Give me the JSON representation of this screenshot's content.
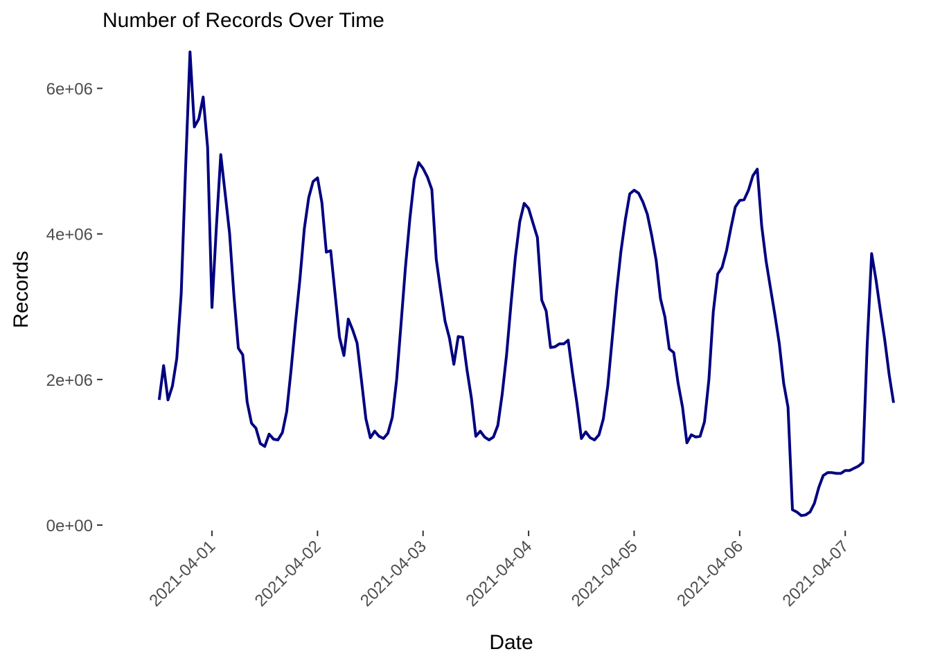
{
  "chart_data": {
    "type": "line",
    "title": "Number of Records Over Time",
    "xlabel": "Date",
    "ylabel": "Records",
    "grid": false,
    "legend": "none",
    "line_color": "#000080",
    "xlim": [
      "2021-03-31 01:00",
      "2021-04-07 11:00"
    ],
    "ylim": [
      0,
      6500000
    ],
    "x_ticks": [
      "2021-04-01",
      "2021-04-02",
      "2021-04-03",
      "2021-04-04",
      "2021-04-05",
      "2021-04-06",
      "2021-04-07"
    ],
    "y_ticks": [
      {
        "value": 0,
        "label": "0e+00"
      },
      {
        "value": 2000000,
        "label": "2e+06"
      },
      {
        "value": 4000000,
        "label": "4e+06"
      },
      {
        "value": 6000000,
        "label": "6e+06"
      }
    ],
    "series": [
      {
        "x": [
          "2021-03-31 12:00",
          "2021-03-31 13:00",
          "2021-03-31 14:00",
          "2021-03-31 15:00",
          "2021-03-31 16:00",
          "2021-03-31 17:00",
          "2021-03-31 18:00",
          "2021-03-31 19:00",
          "2021-03-31 20:00",
          "2021-03-31 21:00",
          "2021-03-31 22:00",
          "2021-03-31 23:00",
          "2021-04-01 00:00",
          "2021-04-01 01:00",
          "2021-04-01 02:00",
          "2021-04-01 03:00",
          "2021-04-01 04:00",
          "2021-04-01 05:00",
          "2021-04-01 06:00",
          "2021-04-01 07:00",
          "2021-04-01 08:00",
          "2021-04-01 09:00",
          "2021-04-01 10:00",
          "2021-04-01 11:00",
          "2021-04-01 12:00",
          "2021-04-01 13:00",
          "2021-04-01 14:00",
          "2021-04-01 15:00",
          "2021-04-01 16:00",
          "2021-04-01 17:00",
          "2021-04-01 18:00",
          "2021-04-01 19:00",
          "2021-04-01 20:00",
          "2021-04-01 21:00",
          "2021-04-01 22:00",
          "2021-04-01 23:00",
          "2021-04-02 00:00",
          "2021-04-02 01:00",
          "2021-04-02 02:00",
          "2021-04-02 03:00",
          "2021-04-02 04:00",
          "2021-04-02 05:00",
          "2021-04-02 06:00",
          "2021-04-02 07:00",
          "2021-04-02 08:00",
          "2021-04-02 09:00",
          "2021-04-02 10:00",
          "2021-04-02 11:00",
          "2021-04-02 12:00",
          "2021-04-02 13:00",
          "2021-04-02 14:00",
          "2021-04-02 15:00",
          "2021-04-02 16:00",
          "2021-04-02 17:00",
          "2021-04-02 18:00",
          "2021-04-02 19:00",
          "2021-04-02 20:00",
          "2021-04-02 21:00",
          "2021-04-02 22:00",
          "2021-04-02 23:00",
          "2021-04-03 00:00",
          "2021-04-03 01:00",
          "2021-04-03 02:00",
          "2021-04-03 03:00",
          "2021-04-03 04:00",
          "2021-04-03 05:00",
          "2021-04-03 06:00",
          "2021-04-03 07:00",
          "2021-04-03 08:00",
          "2021-04-03 09:00",
          "2021-04-03 10:00",
          "2021-04-03 11:00",
          "2021-04-03 12:00",
          "2021-04-03 13:00",
          "2021-04-03 14:00",
          "2021-04-03 15:00",
          "2021-04-03 16:00",
          "2021-04-03 17:00",
          "2021-04-03 18:00",
          "2021-04-03 19:00",
          "2021-04-03 20:00",
          "2021-04-03 21:00",
          "2021-04-03 22:00",
          "2021-04-03 23:00",
          "2021-04-04 00:00",
          "2021-04-04 01:00",
          "2021-04-04 02:00",
          "2021-04-04 03:00",
          "2021-04-04 04:00",
          "2021-04-04 05:00",
          "2021-04-04 06:00",
          "2021-04-04 07:00",
          "2021-04-04 08:00",
          "2021-04-04 09:00",
          "2021-04-04 10:00",
          "2021-04-04 11:00",
          "2021-04-04 12:00",
          "2021-04-04 13:00",
          "2021-04-04 14:00",
          "2021-04-04 15:00",
          "2021-04-04 16:00",
          "2021-04-04 17:00",
          "2021-04-04 18:00",
          "2021-04-04 19:00",
          "2021-04-04 20:00",
          "2021-04-04 21:00",
          "2021-04-04 22:00",
          "2021-04-04 23:00",
          "2021-04-05 00:00",
          "2021-04-05 01:00",
          "2021-04-05 02:00",
          "2021-04-05 03:00",
          "2021-04-05 04:00",
          "2021-04-05 05:00",
          "2021-04-05 06:00",
          "2021-04-05 07:00",
          "2021-04-05 08:00",
          "2021-04-05 09:00",
          "2021-04-05 10:00",
          "2021-04-05 11:00",
          "2021-04-05 12:00",
          "2021-04-05 13:00",
          "2021-04-05 14:00",
          "2021-04-05 15:00",
          "2021-04-05 16:00",
          "2021-04-05 17:00",
          "2021-04-05 18:00",
          "2021-04-05 19:00",
          "2021-04-05 20:00",
          "2021-04-05 21:00",
          "2021-04-05 22:00",
          "2021-04-05 23:00",
          "2021-04-06 00:00",
          "2021-04-06 01:00",
          "2021-04-06 02:00",
          "2021-04-06 03:00",
          "2021-04-06 04:00",
          "2021-04-06 05:00",
          "2021-04-06 06:00",
          "2021-04-06 07:00",
          "2021-04-06 08:00",
          "2021-04-06 09:00",
          "2021-04-06 10:00",
          "2021-04-06 11:00",
          "2021-04-06 12:00",
          "2021-04-06 13:00",
          "2021-04-06 14:00",
          "2021-04-06 15:00",
          "2021-04-06 16:00",
          "2021-04-06 17:00",
          "2021-04-06 18:00",
          "2021-04-06 19:00",
          "2021-04-06 20:00",
          "2021-04-06 21:00",
          "2021-04-06 22:00",
          "2021-04-06 23:00",
          "2021-04-07 00:00",
          "2021-04-07 01:00",
          "2021-04-07 02:00",
          "2021-04-07 03:00",
          "2021-04-07 04:00",
          "2021-04-07 05:00",
          "2021-04-07 06:00",
          "2021-04-07 07:00",
          "2021-04-07 08:00",
          "2021-04-07 09:00",
          "2021-04-07 10:00",
          "2021-04-07 11:00"
        ],
        "values": [
          1720000,
          2190000,
          1720000,
          1910000,
          2290000,
          3180000,
          4900000,
          6500000,
          5470000,
          5580000,
          5880000,
          5190000,
          2990000,
          4100000,
          5090000,
          4550000,
          4010000,
          3140000,
          2430000,
          2340000,
          1690000,
          1400000,
          1330000,
          1120000,
          1080000,
          1250000,
          1180000,
          1170000,
          1270000,
          1560000,
          2140000,
          2780000,
          3380000,
          4070000,
          4500000,
          4720000,
          4770000,
          4430000,
          3750000,
          3770000,
          3170000,
          2580000,
          2330000,
          2830000,
          2680000,
          2500000,
          1980000,
          1460000,
          1200000,
          1290000,
          1220000,
          1190000,
          1260000,
          1480000,
          2000000,
          2770000,
          3540000,
          4210000,
          4750000,
          4980000,
          4900000,
          4780000,
          4610000,
          3650000,
          3220000,
          2800000,
          2570000,
          2210000,
          2590000,
          2580000,
          2130000,
          1740000,
          1220000,
          1290000,
          1210000,
          1170000,
          1210000,
          1370000,
          1800000,
          2340000,
          3040000,
          3680000,
          4170000,
          4420000,
          4350000,
          4150000,
          3950000,
          3090000,
          2940000,
          2440000,
          2450000,
          2490000,
          2490000,
          2540000,
          2080000,
          1670000,
          1190000,
          1280000,
          1200000,
          1170000,
          1240000,
          1460000,
          1910000,
          2550000,
          3210000,
          3760000,
          4200000,
          4550000,
          4600000,
          4560000,
          4440000,
          4270000,
          3980000,
          3640000,
          3110000,
          2860000,
          2420000,
          2370000,
          1950000,
          1620000,
          1130000,
          1240000,
          1210000,
          1220000,
          1420000,
          2000000,
          2930000,
          3450000,
          3540000,
          3770000,
          4080000,
          4370000,
          4460000,
          4470000,
          4600000,
          4800000,
          4890000,
          4110000,
          3630000,
          3260000,
          2890000,
          2500000,
          1950000,
          1620000,
          210000,
          180000,
          130000,
          140000,
          180000,
          300000,
          520000,
          680000,
          720000,
          720000,
          710000,
          710000,
          750000,
          750000,
          780000,
          810000,
          860000,
          2480000,
          3730000,
          3370000,
          2940000,
          2540000,
          2060000,
          1680000
        ]
      }
    ]
  }
}
